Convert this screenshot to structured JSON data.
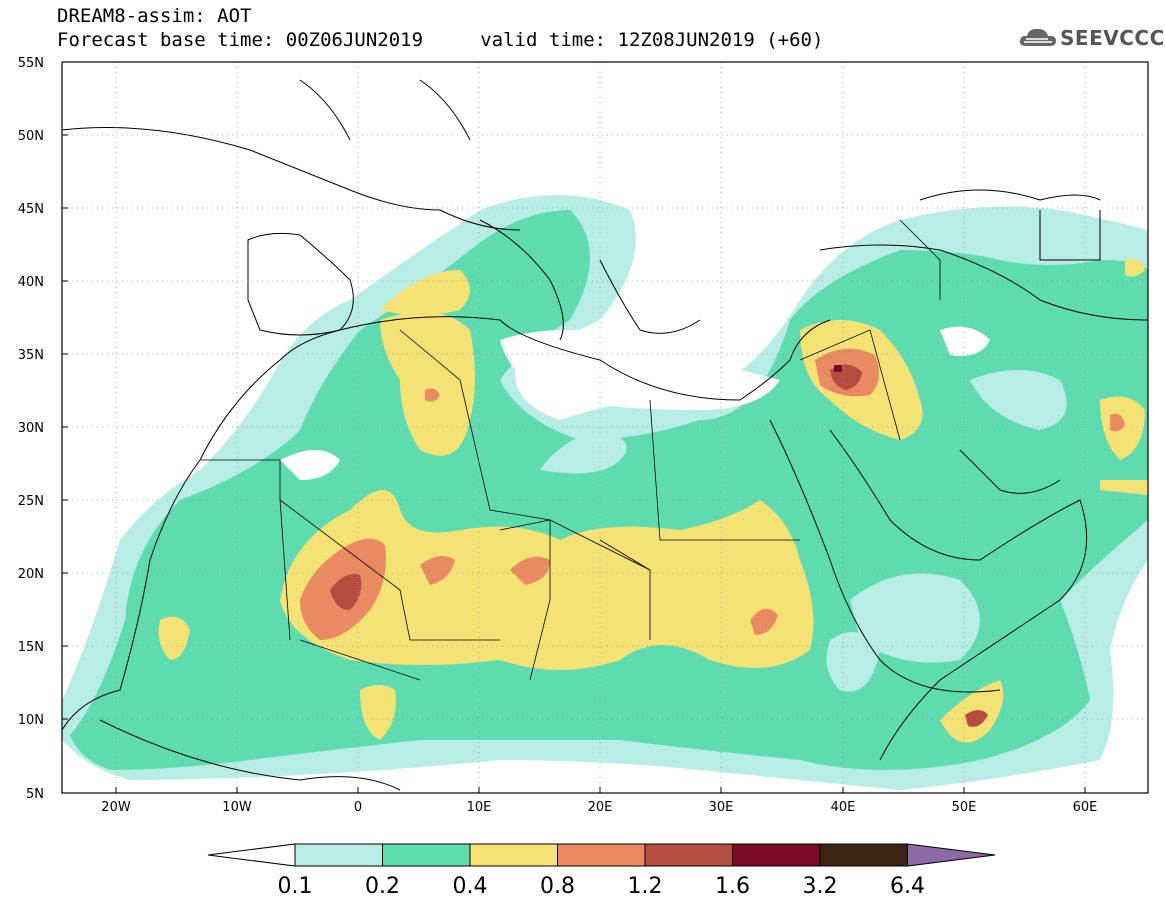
{
  "header": {
    "title": "DREAM8-assim: AOT",
    "subtitle": "Forecast base time: 00Z06JUN2019     valid time: 12Z08JUN2019 (+60)",
    "logo_text": "SEEVCCC"
  },
  "map": {
    "variable": "AOT",
    "lon_range": [
      -25,
      65
    ],
    "lat_range": [
      5,
      55
    ],
    "lat_labels": [
      "55N",
      "50N",
      "45N",
      "40N",
      "35N",
      "30N",
      "25N",
      "20N",
      "15N",
      "10N",
      "5N"
    ],
    "lon_labels": [
      "20W",
      "10W",
      "0",
      "10E",
      "20E",
      "30E",
      "40E",
      "50E",
      "60E"
    ],
    "grid": "dotted"
  },
  "colorbar": {
    "labels": [
      "0.1",
      "0.2",
      "0.4",
      "0.8",
      "1.2",
      "1.6",
      "3.2",
      "6.4"
    ],
    "colors": [
      "#ffffff",
      "#b7ede5",
      "#5edcb0",
      "#f5e274",
      "#e98a63",
      "#b54d40",
      "#7a0a26",
      "#3a2313",
      "#8c6ba5"
    ]
  }
}
